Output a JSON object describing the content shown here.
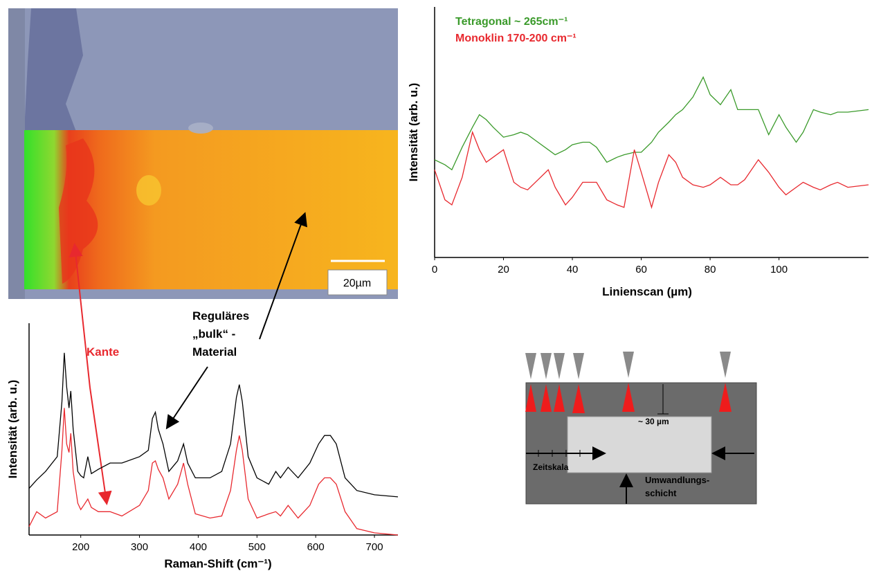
{
  "chart_data": [
    {
      "type": "line",
      "xlabel": "Linienscan (µm)",
      "ylabel": "Intensität (arb. u.)",
      "x": [
        0,
        3,
        5,
        8,
        11,
        13,
        15,
        17,
        20,
        23,
        25,
        27,
        30,
        33,
        35,
        38,
        40,
        43,
        45,
        47,
        50,
        53,
        55,
        58,
        60,
        63,
        65,
        68,
        70,
        72,
        75,
        78,
        80,
        83,
        86,
        88,
        90,
        94,
        97,
        100,
        102,
        105,
        107,
        110,
        112,
        115,
        117,
        120,
        126
      ],
      "series": [
        {
          "name": "Tetragonal ~ 265cm⁻¹",
          "color": "#3a9a2a",
          "values": [
            39,
            37,
            35,
            44,
            52,
            57,
            55,
            52,
            48,
            49,
            50,
            49,
            46,
            43,
            41,
            43,
            45,
            46,
            46,
            44,
            38,
            40,
            41,
            42,
            42,
            46,
            50,
            54,
            57,
            59,
            64,
            72,
            65,
            61,
            67,
            59,
            59,
            59,
            49,
            57,
            52,
            46,
            50,
            59,
            58,
            57,
            58,
            58,
            59
          ]
        },
        {
          "name": "Monoklin 170-200 cm⁻¹",
          "color": "#e8282e",
          "values": [
            35,
            23,
            21,
            32,
            50,
            43,
            38,
            40,
            43,
            30,
            28,
            27,
            31,
            35,
            28,
            21,
            24,
            30,
            30,
            30,
            23,
            21,
            20,
            43,
            34,
            20,
            30,
            41,
            38,
            32,
            29,
            28,
            29,
            32,
            29,
            29,
            31,
            39,
            34,
            28,
            25,
            28,
            30,
            28,
            27,
            29,
            30,
            28,
            29
          ]
        }
      ],
      "xlim": [
        0,
        126
      ],
      "xticks": [
        0,
        20,
        40,
        60,
        80,
        100
      ],
      "ylim": [
        0,
        100
      ]
    },
    {
      "type": "line",
      "xlabel": "Raman-Shift (cm⁻¹)",
      "ylabel": "Intensität (arb. u.)",
      "x": [
        112,
        125,
        140,
        160,
        168,
        172,
        176,
        180,
        183,
        187,
        195,
        200,
        205,
        212,
        218,
        230,
        250,
        270,
        300,
        315,
        322,
        327,
        332,
        340,
        350,
        365,
        375,
        382,
        395,
        420,
        440,
        455,
        465,
        470,
        475,
        485,
        500,
        520,
        532,
        540,
        553,
        570,
        590,
        605,
        615,
        625,
        635,
        650,
        670,
        700,
        740
      ],
      "series": [
        {
          "color": "#000000",
          "values": [
            22,
            26,
            30,
            37,
            63,
            86,
            70,
            60,
            68,
            50,
            30,
            28,
            27,
            37,
            29,
            31,
            34,
            34,
            37,
            40,
            55,
            58,
            50,
            43,
            30,
            35,
            43,
            34,
            27,
            27,
            30,
            43,
            65,
            71,
            63,
            37,
            27,
            24,
            30,
            27,
            32,
            27,
            34,
            43,
            47,
            47,
            43,
            27,
            21,
            19,
            18
          ]
        },
        {
          "color": "#e8282e",
          "values": [
            4,
            11,
            8,
            11,
            40,
            60,
            43,
            39,
            48,
            30,
            15,
            12,
            14,
            17,
            13,
            11,
            11,
            9,
            14,
            21,
            34,
            35,
            31,
            27,
            17,
            24,
            34,
            24,
            10,
            8,
            9,
            21,
            40,
            47,
            40,
            17,
            8,
            10,
            11,
            9,
            14,
            8,
            14,
            24,
            27,
            27,
            24,
            11,
            3,
            1,
            0
          ]
        }
      ],
      "xlim": [
        112,
        740
      ],
      "xticks": [
        200,
        300,
        400,
        500,
        600,
        700
      ],
      "ylim": [
        0,
        100
      ]
    }
  ],
  "image": {
    "scale_bar": "20µm"
  },
  "annotations": {
    "edge": "Kante",
    "bulk": [
      "Reguläres",
      "„bulk“ -",
      "Material"
    ]
  },
  "diagram": {
    "depth": "~ 30 µm",
    "time_scale": "Zeitskala",
    "layer": [
      "Umwandlungs-",
      "schicht"
    ]
  }
}
